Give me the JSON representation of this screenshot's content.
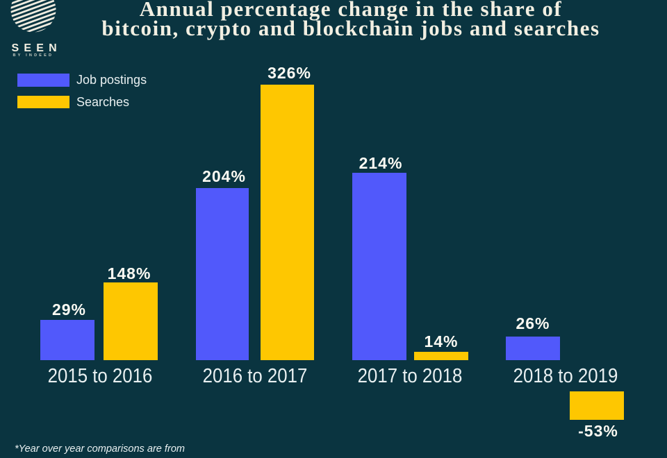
{
  "brand": {
    "name": "SEEN",
    "byline": "BY INDEED"
  },
  "title": {
    "line1": "Annual percentage change in the share of",
    "line2": "bitcoin, crypto and blockchain jobs and searches"
  },
  "footnote": "*Year over year comparisons are from",
  "colors": {
    "background": "#0a3440",
    "job_postings_blue": "#5159fb",
    "searches_yellow": "#fec701",
    "title_cream": "#f2efe2",
    "value_label_white": "#fbfaf3",
    "axis_label_offwhite": "#e9f0f1"
  },
  "chart_data": {
    "type": "bar",
    "title": "Annual percentage change in the share of bitcoin, crypto and blockchain jobs and searches",
    "categories": [
      "2015 to 2016",
      "2016 to 2017",
      "2017 to 2018",
      "2018 to 2019"
    ],
    "series": [
      {
        "name": "Job postings",
        "color": "#5159fb",
        "values": [
          29,
          204,
          214,
          26
        ],
        "labels": [
          "29%",
          "204%",
          "214%",
          "26%"
        ]
      },
      {
        "name": "Searches",
        "color": "#fec701",
        "values": [
          148,
          326,
          14,
          -53
        ],
        "labels": [
          "148%",
          "326%",
          "14%",
          "-53%"
        ]
      }
    ],
    "value_unit": "percent",
    "legend_position": "top-left",
    "grid": false,
    "baseline": 0,
    "note": "Negative bar (-53%) drawn below the category axis; source bar heights are not on a single consistent linear scale."
  }
}
